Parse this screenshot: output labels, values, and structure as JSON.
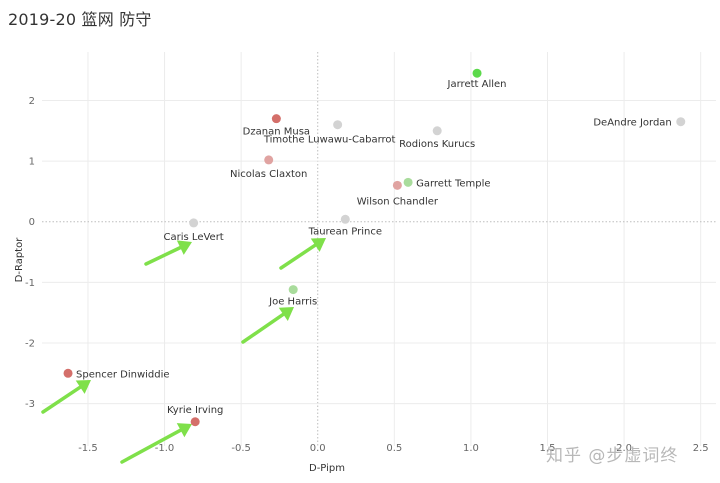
{
  "title": "2019-20 篮网 防守",
  "watermark": "知乎 @步虚词终",
  "chart_data": {
    "type": "scatter",
    "xlabel": "D-Pipm",
    "ylabel": "D-Raptor",
    "xlim": [
      -1.8,
      2.6
    ],
    "ylim": [
      -3.7,
      2.8
    ],
    "xticks": [
      "-1.5",
      "-1.0",
      "-0.5",
      "0.0",
      "0.5",
      "1.0",
      "1.5",
      "2.0",
      "2.5"
    ],
    "yticks": [
      "2",
      "1",
      "0",
      "-1",
      "-2",
      "-3"
    ],
    "grid": true,
    "points": [
      {
        "name": "Jarrett Allen",
        "x": 1.04,
        "y": 2.45,
        "color": "#5bd94a"
      },
      {
        "name": "Dzanan Musa",
        "x": -0.27,
        "y": 1.7,
        "color": "#d46f6a"
      },
      {
        "name": "Timothe Luwawu-Cabarrot",
        "x": 0.13,
        "y": 1.6,
        "color": "#d3d3d3"
      },
      {
        "name": "Rodions Kurucs",
        "x": 0.78,
        "y": 1.5,
        "color": "#d3d3d3"
      },
      {
        "name": "DeAndre Jordan",
        "x": 2.37,
        "y": 1.65,
        "color": "#d3d3d3"
      },
      {
        "name": "Nicolas Claxton",
        "x": -0.32,
        "y": 1.02,
        "color": "#e0a3a1"
      },
      {
        "name": "Garrett Temple",
        "x": 0.59,
        "y": 0.65,
        "color": "#a9dc9c"
      },
      {
        "name": "Wilson Chandler",
        "x": 0.52,
        "y": 0.6,
        "color": "#e0a3a1"
      },
      {
        "name": "Caris LeVert",
        "x": -0.81,
        "y": -0.02,
        "color": "#d3d3d3"
      },
      {
        "name": "Taurean Prince",
        "x": 0.18,
        "y": 0.04,
        "color": "#d3d3d3"
      },
      {
        "name": "Joe Harris",
        "x": -0.16,
        "y": -1.12,
        "color": "#a9dc9c"
      },
      {
        "name": "Spencer Dinwiddie",
        "x": -1.63,
        "y": -2.5,
        "color": "#d46f6a"
      },
      {
        "name": "Kyrie Irving",
        "x": -0.8,
        "y": -3.3,
        "color": "#d46f6a"
      }
    ],
    "arrow_color": "#7fe04a"
  }
}
